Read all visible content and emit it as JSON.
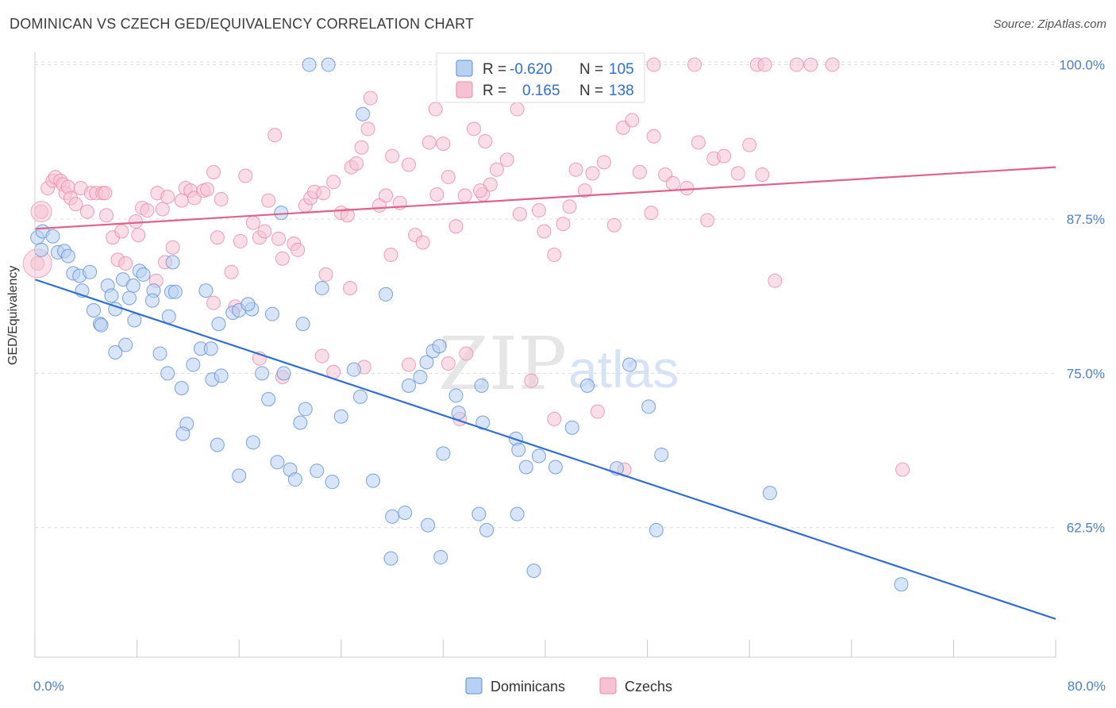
{
  "title": "DOMINICAN VS CZECH GED/EQUIVALENCY CORRELATION CHART",
  "source": "Source: ZipAtlas.com",
  "watermark": "ZIPatlas",
  "colors": {
    "blue": "#5b8fd6",
    "blue_fill": "#b8d0f2",
    "blue_line": "#2f6fd1",
    "pink": "#e889a8",
    "pink_fill": "#f6c2d3",
    "pink_line": "#e0628b",
    "tick_text": "#4a7fd0",
    "grid": "#dcdcdc"
  },
  "legend": {
    "rows": [
      {
        "r_label": "R =",
        "r_value": "-0.620",
        "n_label": "N =",
        "n_value": "105"
      },
      {
        "r_label": "R =",
        "r_value": "0.165",
        "n_label": "N =",
        "n_value": "138"
      }
    ]
  },
  "chart_data": {
    "type": "scatter",
    "title": "DOMINICAN VS CZECH GED/EQUIVALENCY CORRELATION CHART",
    "xlabel": "",
    "ylabel": "GED/Equivalency",
    "xlim": [
      0,
      80
    ],
    "ylim": [
      52,
      101
    ],
    "x_tick_labels": [
      "0.0%",
      "80.0%"
    ],
    "y_ticks": [
      62.5,
      75.0,
      87.5,
      100.0
    ],
    "y_tick_labels": [
      "62.5%",
      "75.0%",
      "87.5%",
      "100.0%"
    ],
    "grid": true,
    "legend_position": "bottom-center",
    "series": [
      {
        "name": "Dominicans",
        "r": -0.62,
        "n": 105,
        "trend": {
          "x0": 0,
          "y0": 82.6,
          "x1": 80,
          "y1": 55.1
        },
        "points": [
          [
            0.2,
            86.0
          ],
          [
            0.5,
            85.0
          ],
          [
            0.6,
            86.5
          ],
          [
            1.4,
            86.1
          ],
          [
            1.8,
            84.8
          ],
          [
            2.3,
            84.9
          ],
          [
            2.6,
            84.5
          ],
          [
            3.0,
            83.1
          ],
          [
            3.5,
            82.9
          ],
          [
            4.3,
            83.2
          ],
          [
            3.7,
            81.7
          ],
          [
            5.7,
            82.1
          ],
          [
            6.9,
            82.6
          ],
          [
            7.7,
            82.1
          ],
          [
            8.2,
            83.3
          ],
          [
            8.5,
            83.0
          ],
          [
            9.3,
            81.7
          ],
          [
            10.7,
            81.6
          ],
          [
            11.0,
            81.6
          ],
          [
            6.0,
            81.3
          ],
          [
            7.4,
            81.1
          ],
          [
            4.6,
            80.1
          ],
          [
            5.1,
            79.0
          ],
          [
            5.2,
            78.9
          ],
          [
            7.8,
            79.3
          ],
          [
            10.5,
            79.6
          ],
          [
            14.4,
            79.0
          ],
          [
            15.5,
            79.9
          ],
          [
            16.0,
            80.1
          ],
          [
            17.0,
            80.2
          ],
          [
            18.6,
            79.8
          ],
          [
            21.0,
            79.0
          ],
          [
            22.5,
            81.9
          ],
          [
            27.5,
            81.4
          ],
          [
            10.8,
            84.0
          ],
          [
            19.3,
            88.0
          ],
          [
            21.5,
            100.0
          ],
          [
            23.0,
            100.0
          ],
          [
            25.7,
            96.0
          ],
          [
            7.1,
            77.3
          ],
          [
            6.3,
            76.7
          ],
          [
            9.8,
            76.6
          ],
          [
            10.4,
            75.0
          ],
          [
            11.5,
            73.8
          ],
          [
            12.4,
            75.7
          ],
          [
            13.0,
            77.0
          ],
          [
            13.8,
            77.0
          ],
          [
            13.9,
            74.5
          ],
          [
            14.6,
            74.8
          ],
          [
            17.8,
            75.0
          ],
          [
            19.5,
            75.0
          ],
          [
            18.3,
            72.9
          ],
          [
            21.2,
            72.1
          ],
          [
            20.8,
            71.0
          ],
          [
            24.0,
            71.5
          ],
          [
            25.0,
            75.3
          ],
          [
            25.5,
            73.1
          ],
          [
            29.3,
            74.0
          ],
          [
            30.7,
            75.9
          ],
          [
            31.2,
            76.8
          ],
          [
            31.7,
            77.2
          ],
          [
            33.0,
            73.2
          ],
          [
            33.2,
            71.8
          ],
          [
            35.1,
            71.0
          ],
          [
            11.9,
            70.9
          ],
          [
            11.6,
            70.1
          ],
          [
            14.3,
            69.2
          ],
          [
            17.1,
            69.4
          ],
          [
            19.0,
            67.8
          ],
          [
            20.0,
            67.2
          ],
          [
            20.4,
            66.4
          ],
          [
            22.1,
            67.1
          ],
          [
            23.3,
            66.2
          ],
          [
            16.0,
            66.7
          ],
          [
            26.5,
            66.3
          ],
          [
            28.0,
            63.4
          ],
          [
            29.0,
            63.7
          ],
          [
            30.8,
            62.7
          ],
          [
            32.0,
            68.5
          ],
          [
            34.8,
            63.6
          ],
          [
            35.4,
            62.3
          ],
          [
            37.7,
            69.7
          ],
          [
            37.9,
            68.8
          ],
          [
            38.5,
            67.4
          ],
          [
            37.8,
            63.6
          ],
          [
            39.5,
            68.3
          ],
          [
            40.8,
            67.4
          ],
          [
            42.1,
            70.6
          ],
          [
            43.3,
            74.0
          ],
          [
            45.6,
            67.3
          ],
          [
            46.6,
            75.7
          ],
          [
            48.1,
            72.3
          ],
          [
            49.1,
            68.4
          ],
          [
            48.7,
            62.3
          ],
          [
            27.9,
            60.0
          ],
          [
            31.8,
            60.1
          ],
          [
            39.1,
            59.0
          ],
          [
            57.6,
            65.3
          ],
          [
            67.9,
            57.9
          ],
          [
            6.3,
            80.2
          ],
          [
            9.2,
            80.9
          ],
          [
            13.4,
            81.7
          ],
          [
            16.7,
            80.6
          ],
          [
            35.0,
            74.0
          ],
          [
            30.2,
            74.7
          ]
        ]
      },
      {
        "name": "Czechs",
        "r": 0.165,
        "n": 138,
        "trend": {
          "x0": 0,
          "y0": 86.7,
          "x1": 80,
          "y1": 91.7
        },
        "points": [
          [
            0.2,
            83.9
          ],
          [
            0.5,
            88.1
          ],
          [
            1.0,
            90.0
          ],
          [
            1.4,
            90.6
          ],
          [
            1.6,
            90.9
          ],
          [
            2.0,
            90.6
          ],
          [
            2.2,
            90.3
          ],
          [
            2.4,
            89.6
          ],
          [
            2.6,
            90.1
          ],
          [
            2.8,
            89.2
          ],
          [
            3.2,
            88.7
          ],
          [
            3.6,
            90.0
          ],
          [
            4.1,
            88.1
          ],
          [
            4.4,
            89.6
          ],
          [
            4.8,
            89.6
          ],
          [
            5.3,
            89.6
          ],
          [
            5.5,
            89.6
          ],
          [
            5.6,
            87.8
          ],
          [
            6.1,
            86.0
          ],
          [
            6.5,
            84.2
          ],
          [
            6.8,
            86.5
          ],
          [
            7.1,
            83.9
          ],
          [
            7.9,
            87.3
          ],
          [
            8.1,
            86.2
          ],
          [
            8.4,
            88.4
          ],
          [
            8.8,
            88.2
          ],
          [
            9.6,
            89.6
          ],
          [
            10.0,
            88.3
          ],
          [
            10.4,
            89.3
          ],
          [
            10.8,
            85.2
          ],
          [
            11.5,
            89.0
          ],
          [
            11.8,
            90.0
          ],
          [
            12.2,
            89.8
          ],
          [
            12.5,
            89.2
          ],
          [
            13.2,
            89.8
          ],
          [
            13.5,
            89.9
          ],
          [
            14.0,
            91.3
          ],
          [
            14.3,
            86.0
          ],
          [
            14.6,
            89.1
          ],
          [
            15.4,
            83.2
          ],
          [
            15.7,
            80.4
          ],
          [
            16.1,
            85.7
          ],
          [
            16.5,
            91.0
          ],
          [
            17.1,
            87.2
          ],
          [
            17.6,
            86.0
          ],
          [
            18.0,
            86.5
          ],
          [
            18.3,
            89.0
          ],
          [
            18.8,
            94.3
          ],
          [
            19.1,
            85.9
          ],
          [
            19.4,
            84.3
          ],
          [
            20.3,
            85.5
          ],
          [
            20.6,
            85.0
          ],
          [
            21.2,
            88.6
          ],
          [
            21.6,
            89.2
          ],
          [
            21.9,
            89.7
          ],
          [
            22.6,
            89.6
          ],
          [
            23.4,
            90.5
          ],
          [
            24.0,
            88.0
          ],
          [
            24.5,
            87.8
          ],
          [
            24.8,
            91.7
          ],
          [
            25.2,
            92.0
          ],
          [
            25.6,
            93.3
          ],
          [
            26.1,
            94.8
          ],
          [
            26.3,
            97.3
          ],
          [
            27.0,
            88.6
          ],
          [
            27.5,
            89.4
          ],
          [
            28.0,
            92.6
          ],
          [
            28.6,
            88.8
          ],
          [
            29.3,
            91.9
          ],
          [
            29.8,
            86.2
          ],
          [
            30.4,
            85.6
          ],
          [
            30.9,
            93.7
          ],
          [
            31.5,
            89.5
          ],
          [
            32.0,
            93.6
          ],
          [
            32.4,
            90.9
          ],
          [
            33.0,
            86.9
          ],
          [
            33.7,
            89.4
          ],
          [
            34.4,
            94.8
          ],
          [
            35.1,
            89.5
          ],
          [
            35.3,
            93.8
          ],
          [
            35.7,
            90.3
          ],
          [
            36.2,
            91.5
          ],
          [
            37.0,
            92.3
          ],
          [
            38.0,
            87.9
          ],
          [
            39.5,
            88.2
          ],
          [
            39.9,
            86.5
          ],
          [
            40.7,
            84.6
          ],
          [
            41.4,
            87.1
          ],
          [
            41.9,
            88.5
          ],
          [
            42.4,
            91.5
          ],
          [
            43.1,
            89.8
          ],
          [
            43.7,
            91.2
          ],
          [
            44.6,
            92.1
          ],
          [
            45.4,
            87.0
          ],
          [
            46.1,
            94.9
          ],
          [
            46.8,
            95.5
          ],
          [
            47.4,
            91.3
          ],
          [
            48.5,
            94.2
          ],
          [
            49.4,
            91.1
          ],
          [
            50.0,
            90.4
          ],
          [
            51.1,
            90.0
          ],
          [
            52.0,
            93.7
          ],
          [
            53.2,
            92.4
          ],
          [
            54.0,
            92.6
          ],
          [
            55.1,
            91.2
          ],
          [
            56.0,
            93.5
          ],
          [
            57.0,
            91.1
          ],
          [
            48.3,
            88.0
          ],
          [
            58.0,
            82.5
          ],
          [
            9.5,
            82.5
          ],
          [
            10.2,
            84.0
          ],
          [
            14.0,
            80.7
          ],
          [
            17.6,
            76.2
          ],
          [
            19.4,
            74.7
          ],
          [
            22.5,
            76.4
          ],
          [
            23.4,
            75.1
          ],
          [
            25.8,
            75.5
          ],
          [
            29.3,
            75.7
          ],
          [
            32.4,
            75.8
          ],
          [
            33.8,
            76.6
          ],
          [
            33.3,
            71.3
          ],
          [
            40.7,
            71.3
          ],
          [
            44.1,
            71.9
          ],
          [
            52.7,
            87.4
          ],
          [
            62.5,
            100.0
          ],
          [
            59.7,
            100.0
          ],
          [
            48.5,
            100.0
          ],
          [
            51.7,
            100.0
          ],
          [
            56.6,
            100.0
          ],
          [
            57.2,
            100.0
          ],
          [
            60.8,
            100.0
          ],
          [
            37.8,
            96.4
          ],
          [
            33.2,
            97.6
          ],
          [
            31.4,
            96.4
          ],
          [
            34.9,
            89.8
          ],
          [
            27.9,
            84.6
          ],
          [
            22.8,
            83.0
          ],
          [
            24.7,
            81.9
          ],
          [
            38.9,
            74.4
          ],
          [
            46.2,
            67.2
          ],
          [
            68.0,
            67.2
          ]
        ]
      }
    ]
  }
}
